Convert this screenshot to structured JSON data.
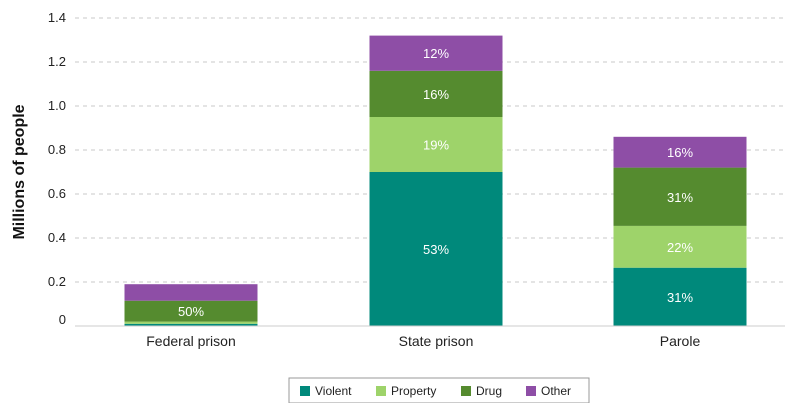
{
  "chart_data": {
    "type": "bar",
    "stacked": true,
    "title": "",
    "xlabel": "",
    "ylabel": "Millions of people",
    "ylim": [
      0,
      1.4
    ],
    "yticks": [
      0,
      0.2,
      0.4,
      0.6,
      0.8,
      1.0,
      1.2,
      1.4
    ],
    "ytick_labels": [
      "0",
      "0.2",
      "0.4",
      "0.6",
      "0.8",
      "1.0",
      "1.2",
      "1.4"
    ],
    "grid": true,
    "legend_position": "bottom",
    "categories": [
      "Federal prison",
      "State prison",
      "Parole"
    ],
    "series": [
      {
        "name": "Violent",
        "color": "#00897b",
        "values": [
          0.01,
          0.7,
          0.265
        ],
        "labels": [
          "",
          "53%",
          "31%"
        ]
      },
      {
        "name": "Property",
        "color": "#9ed36a",
        "values": [
          0.01,
          0.25,
          0.19
        ],
        "labels": [
          "",
          "19%",
          "22%"
        ]
      },
      {
        "name": "Drug",
        "color": "#558b2f",
        "values": [
          0.095,
          0.21,
          0.265
        ],
        "labels": [
          "50%",
          "16%",
          "31%"
        ]
      },
      {
        "name": "Other",
        "color": "#8e4ea6",
        "values": [
          0.075,
          0.16,
          0.14
        ],
        "labels": [
          "",
          "12%",
          "16%"
        ]
      }
    ]
  }
}
